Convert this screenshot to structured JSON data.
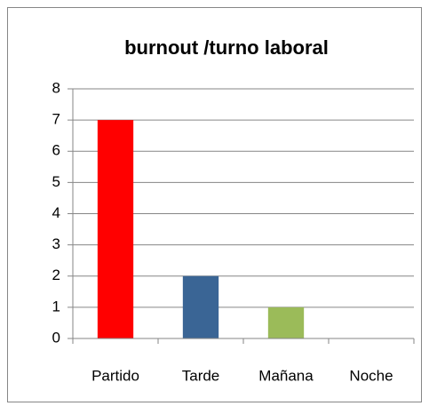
{
  "chart_data": {
    "type": "bar",
    "title": "burnout /turno laboral",
    "categories": [
      "Partido",
      "Tarde",
      "Mañana",
      "Noche"
    ],
    "values": [
      7,
      2,
      1,
      0
    ],
    "colors": [
      "#ff0000",
      "#3a6595",
      "#9bbb59",
      "#4f81bd"
    ],
    "ylim": [
      0,
      8
    ],
    "yticks": [
      0,
      1,
      2,
      3,
      4,
      5,
      6,
      7,
      8
    ],
    "grid": true
  }
}
